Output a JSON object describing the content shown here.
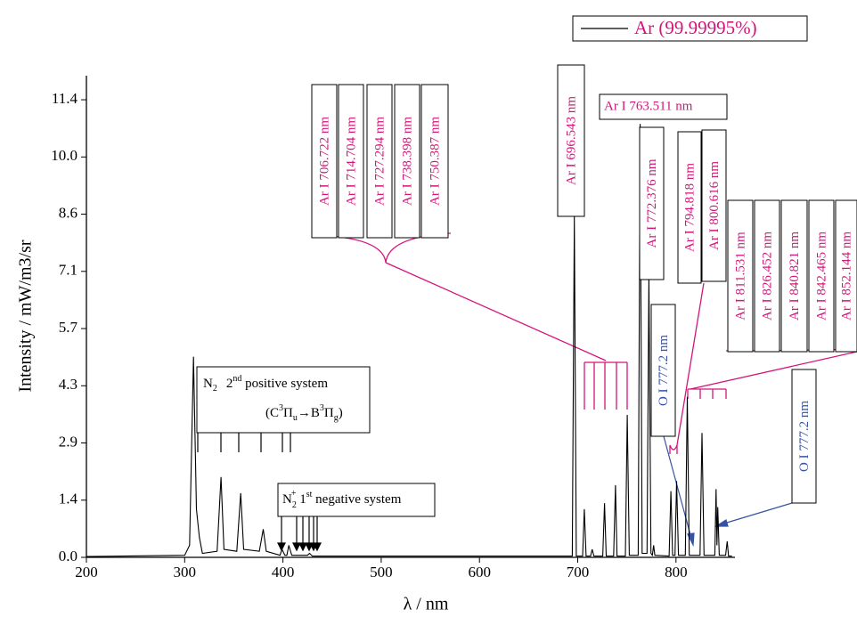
{
  "chart_data": {
    "type": "line",
    "x_label": "λ / nm",
    "y_label": "Intensity / mW/m3/sr",
    "xlim": [
      200,
      860
    ],
    "ylim": [
      0,
      12
    ],
    "xticks": [
      200,
      300,
      400,
      500,
      600,
      700,
      800
    ],
    "yticks": [
      {
        "value": 0,
        "label": "0.0"
      },
      {
        "value": 1.425,
        "label": "1.4"
      },
      {
        "value": 2.85,
        "label": "2.9"
      },
      {
        "value": 4.275,
        "label": "4.3"
      },
      {
        "value": 5.7,
        "label": "5.7"
      },
      {
        "value": 7.125,
        "label": "7.1"
      },
      {
        "value": 8.55,
        "label": "8.6"
      },
      {
        "value": 9.975,
        "label": "10.0"
      },
      {
        "value": 11.4,
        "label": "11.4"
      }
    ],
    "series": [
      {
        "name": "Ar (99.99995%)",
        "color": "#000000",
        "x": [
          200,
          300,
          305,
          309,
          312,
          315,
          318,
          333,
          337,
          340,
          353,
          357,
          360,
          376,
          380,
          383,
          397,
          399,
          402,
          404,
          406,
          409,
          425,
          427,
          430,
          694.5,
          696.5,
          698.5,
          705,
          706.7,
          708.5,
          713,
          714.7,
          716.5,
          725.5,
          727.3,
          729,
          736.5,
          738.4,
          740,
          748.5,
          750.4,
          752.5,
          761.5,
          763.5,
          765.5,
          770.5,
          772.4,
          774.5,
          776,
          777.2,
          778.5,
          793,
          794.8,
          796.5,
          799,
          800.6,
          802.5,
          809.5,
          811.5,
          813.5,
          824.5,
          826.5,
          828.5,
          839.5,
          840.8,
          841.7,
          842.5,
          844,
          850.5,
          852.1,
          853.5,
          857
        ],
        "values": [
          0.02,
          0.05,
          0.3,
          5.0,
          1.2,
          0.5,
          0.1,
          0.15,
          2.0,
          0.2,
          0.15,
          1.6,
          0.2,
          0.15,
          0.7,
          0.15,
          0.05,
          0.2,
          0.05,
          0.05,
          0.3,
          0.05,
          0.05,
          0.1,
          0.03,
          0.03,
          8.5,
          0.03,
          0.03,
          1.2,
          0.03,
          0.03,
          0.2,
          0.03,
          0.03,
          1.35,
          0.03,
          0.03,
          1.8,
          0.03,
          0.03,
          3.55,
          0.05,
          0.05,
          10.8,
          0.1,
          0.1,
          7.0,
          0.1,
          0.05,
          0.3,
          0.05,
          0.03,
          1.65,
          0.05,
          0.05,
          1.9,
          0.05,
          0.05,
          4.0,
          0.05,
          0.05,
          3.1,
          0.05,
          0.05,
          1.7,
          0.3,
          1.25,
          0.05,
          0.05,
          0.4,
          0.03,
          0.03
        ]
      }
    ],
    "legend": "top-right",
    "ar_lines": [
      "Ar I 706.722 nm",
      "Ar I 714.704 nm",
      "Ar I 727.294 nm",
      "Ar I 738.398 nm",
      "Ar I 750.387 nm",
      "Ar I 696.543 nm",
      "Ar I   763.511 nm",
      "Ar I 772.376 nm",
      "Ar I 794.818 nm",
      "Ar I 800.616 nm",
      "Ar I 811.531 nm",
      "Ar I 826.452 nm",
      "Ar I 840.821 nm",
      "Ar I 842.465 nm",
      "Ar I 852.144 nm"
    ],
    "o_lines": [
      "O I 777.2 nm",
      "O I 777.2 nm"
    ],
    "n2_second": [
      "N",
      "2",
      "2",
      "nd",
      " positive system"
    ],
    "n2_transition": [
      "(C",
      "3",
      "Π",
      "u",
      "→B",
      "3",
      "Π",
      "g",
      ")"
    ],
    "n2plus_first": [
      "N",
      "2",
      "+",
      " 1",
      "st",
      " negative system"
    ]
  }
}
